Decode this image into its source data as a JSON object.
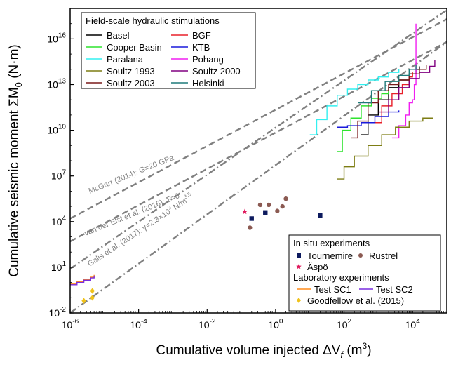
{
  "chart_data": {
    "type": "line",
    "xlabel": "Cumulative volume injected ΔV",
    "xlabel_sub": "f",
    "xlabel_unit": "(m",
    "xlabel_unit_sup": "3",
    "xlabel_unit_close": ")",
    "ylabel": "Cumulative seismic moment ΣM",
    "ylabel_sub": "0",
    "ylabel_unit": "(N·m)",
    "x_scale": "log",
    "y_scale": "log",
    "xlim_log10": [
      -6,
      5
    ],
    "ylim_log10": [
      -2,
      18
    ],
    "x_ticks": [
      {
        "base": "10",
        "exp": "-6",
        "log": -6
      },
      {
        "base": "10",
        "exp": "-4",
        "log": -4
      },
      {
        "base": "10",
        "exp": "-2",
        "log": -2
      },
      {
        "base": "10",
        "exp": "0",
        "log": 0
      },
      {
        "base": "10",
        "exp": "2",
        "log": 2
      },
      {
        "base": "10",
        "exp": "4",
        "log": 4
      }
    ],
    "y_ticks": [
      {
        "base": "10",
        "exp": "-2",
        "log": -2
      },
      {
        "base": "10",
        "exp": "1",
        "log": 1
      },
      {
        "base": "10",
        "exp": "4",
        "log": 4
      },
      {
        "base": "10",
        "exp": "7",
        "log": 7
      },
      {
        "base": "10",
        "exp": "10",
        "log": 10
      },
      {
        "base": "10",
        "exp": "13",
        "log": 13
      },
      {
        "base": "10",
        "exp": "16",
        "log": 16
      }
    ],
    "reference_lines": [
      {
        "label": "McGarr (2014): G=20 GPa",
        "dash": "long",
        "points": [
          [
            -6,
            4.2
          ],
          [
            5,
            17.3
          ]
        ]
      },
      {
        "label": "van der Elst et al. (2016): Σ=0",
        "dash": "long",
        "points": [
          [
            -6,
            2.7
          ],
          [
            5,
            15.8
          ]
        ]
      },
      {
        "label": "Galis et al. (2017): γ=2.3×10",
        "label_sup": "9",
        "label_tail": " N/m",
        "label_tail_sup": "3.5",
        "dash": "dashdot",
        "points": [
          [
            -6,
            0.9
          ],
          [
            5,
            17.9
          ]
        ]
      },
      {
        "label": "",
        "dash": "dashdot",
        "points": [
          [
            -6,
            -2.0
          ],
          [
            5,
            15.8
          ]
        ]
      }
    ],
    "legend_field": {
      "title": "Field-scale hydraulic stimulations",
      "placement": "top-left",
      "entries": [
        {
          "name": "Basel",
          "color": "#000000"
        },
        {
          "name": "BGF",
          "color": "#e8202a"
        },
        {
          "name": "Cooper Basin",
          "color": "#2ee32e"
        },
        {
          "name": "KTB",
          "color": "#1a1adb"
        },
        {
          "name": "Paralana",
          "color": "#33f0f0"
        },
        {
          "name": "Pohang",
          "color": "#f01ff0"
        },
        {
          "name": "Soultz 1993",
          "color": "#7d7d14"
        },
        {
          "name": "Soultz 2000",
          "color": "#800080"
        },
        {
          "name": "Soultz 2003",
          "color": "#7a1a1a"
        },
        {
          "name": "Helsinki",
          "color": "#1f7a7a"
        }
      ]
    },
    "legend_lab": {
      "placement": "bottom-right",
      "insitu_title": "In situ experiments",
      "lab_title": "Laboratory experiments",
      "entries": [
        {
          "name": "Tournemire",
          "marker": "square",
          "color": "#0d1a5e"
        },
        {
          "name": "Rustrel",
          "marker": "circle",
          "color": "#8b5a52"
        },
        {
          "name": "Äspö",
          "marker": "star",
          "color": "#e0185c"
        },
        {
          "name": "Test SC1",
          "marker": "line",
          "color": "#ff8c1a"
        },
        {
          "name": "Test SC2",
          "marker": "line",
          "color": "#7a2ee0"
        },
        {
          "name": "Goodfellow et al. (2015)",
          "marker": "diamond",
          "color": "#f0c21a"
        }
      ]
    },
    "series": [
      {
        "name": "Basel",
        "color": "#000000",
        "points": [
          [
            2.5,
            9.7
          ],
          [
            2.7,
            11.0
          ],
          [
            3.0,
            12.0
          ],
          [
            3.3,
            12.8
          ],
          [
            3.6,
            13.3
          ],
          [
            3.9,
            13.7
          ],
          [
            4.1,
            14.0
          ],
          [
            4.2,
            14.2
          ]
        ]
      },
      {
        "name": "BGF",
        "color": "#e8202a",
        "points": [
          [
            2.9,
            10.5
          ],
          [
            3.1,
            11.6
          ],
          [
            3.4,
            12.4
          ],
          [
            3.7,
            13.0
          ],
          [
            3.9,
            13.5
          ],
          [
            4.0,
            13.8
          ]
        ]
      },
      {
        "name": "Cooper Basin",
        "color": "#2ee32e",
        "points": [
          [
            1.8,
            8.6
          ],
          [
            1.95,
            10.0
          ],
          [
            2.2,
            10.8
          ],
          [
            2.5,
            11.6
          ],
          [
            2.8,
            12.1
          ],
          [
            3.1,
            12.4
          ],
          [
            3.3,
            12.6
          ]
        ]
      },
      {
        "name": "KTB",
        "color": "#1a1adb",
        "points": [
          [
            1.8,
            10.2
          ],
          [
            2.1,
            10.3
          ],
          [
            2.5,
            10.5
          ],
          [
            2.9,
            10.9
          ],
          [
            3.3,
            11.2
          ],
          [
            3.6,
            11.3
          ]
        ]
      },
      {
        "name": "Paralana",
        "color": "#33f0f0",
        "points": [
          [
            1.0,
            9.7
          ],
          [
            1.2,
            10.7
          ],
          [
            1.5,
            11.6
          ],
          [
            1.8,
            12.3
          ],
          [
            2.1,
            12.7
          ],
          [
            2.4,
            13.0
          ],
          [
            2.7,
            13.3
          ],
          [
            3.0,
            13.5
          ],
          [
            3.3,
            13.8
          ],
          [
            3.6,
            14.0
          ]
        ]
      },
      {
        "name": "Pohang",
        "color": "#f01ff0",
        "points": [
          [
            3.4,
            9.5
          ],
          [
            3.6,
            10.3
          ],
          [
            3.8,
            11.0
          ],
          [
            3.9,
            11.8
          ],
          [
            4.0,
            12.0
          ],
          [
            4.05,
            13.0
          ],
          [
            4.1,
            17.0
          ]
        ]
      },
      {
        "name": "Soultz 1993",
        "color": "#7d7d14",
        "points": [
          [
            1.8,
            6.8
          ],
          [
            2.0,
            7.6
          ],
          [
            2.3,
            8.3
          ],
          [
            2.7,
            9.0
          ],
          [
            3.1,
            9.7
          ],
          [
            3.5,
            10.2
          ],
          [
            3.9,
            10.6
          ],
          [
            4.3,
            10.8
          ],
          [
            4.6,
            10.8
          ]
        ]
      },
      {
        "name": "Soultz 2000",
        "color": "#800080",
        "points": [
          [
            3.0,
            11.2
          ],
          [
            3.3,
            12.0
          ],
          [
            3.6,
            12.8
          ],
          [
            3.9,
            13.4
          ],
          [
            4.2,
            13.8
          ],
          [
            4.5,
            14.2
          ],
          [
            4.65,
            14.6
          ]
        ]
      },
      {
        "name": "Soultz 2003",
        "color": "#7a1a1a",
        "points": [
          [
            2.2,
            9.5
          ],
          [
            2.4,
            10.6
          ],
          [
            2.7,
            11.8
          ],
          [
            3.0,
            12.6
          ],
          [
            3.3,
            13.0
          ],
          [
            3.6,
            13.3
          ],
          [
            3.9,
            13.7
          ],
          [
            4.2,
            14.0
          ],
          [
            4.4,
            14.3
          ]
        ]
      },
      {
        "name": "Helsinki",
        "color": "#1f7a7a",
        "points": [
          [
            2.4,
            11.8
          ],
          [
            2.8,
            12.6
          ],
          [
            3.2,
            13.2
          ],
          [
            3.6,
            13.6
          ],
          [
            3.9,
            14.0
          ],
          [
            4.1,
            14.3
          ]
        ]
      },
      {
        "name": "Test SC1",
        "color": "#ff8c1a",
        "points": [
          [
            -6.0,
            -0.1
          ],
          [
            -5.8,
            0.05
          ],
          [
            -5.6,
            0.2
          ],
          [
            -5.4,
            0.35
          ],
          [
            -5.3,
            0.5
          ]
        ]
      },
      {
        "name": "Test SC2",
        "color": "#7a2ee0",
        "points": [
          [
            -6.0,
            -0.15
          ],
          [
            -5.8,
            0.0
          ],
          [
            -5.6,
            0.15
          ],
          [
            -5.4,
            0.3
          ],
          [
            -5.3,
            0.45
          ]
        ]
      }
    ],
    "scatter": [
      {
        "name": "Tournemire",
        "marker": "square",
        "color": "#0d1a5e",
        "points": [
          [
            -0.7,
            4.2
          ],
          [
            -0.3,
            4.6
          ],
          [
            1.3,
            4.4
          ]
        ]
      },
      {
        "name": "Rustrel",
        "marker": "circle",
        "color": "#8b5a52",
        "points": [
          [
            -0.75,
            3.6
          ],
          [
            -0.45,
            5.1
          ],
          [
            -0.2,
            5.1
          ],
          [
            0.05,
            4.7
          ],
          [
            0.2,
            5.0
          ],
          [
            0.3,
            5.5
          ]
        ]
      },
      {
        "name": "Äspö",
        "marker": "star",
        "color": "#e0185c",
        "points": [
          [
            -0.9,
            4.65
          ]
        ]
      },
      {
        "name": "Goodfellow et al. (2015)",
        "marker": "diamond",
        "color": "#f0c21a",
        "points": [
          [
            -5.6,
            -1.2
          ],
          [
            -5.35,
            -1.0
          ],
          [
            -5.35,
            -0.55
          ]
        ]
      }
    ]
  }
}
